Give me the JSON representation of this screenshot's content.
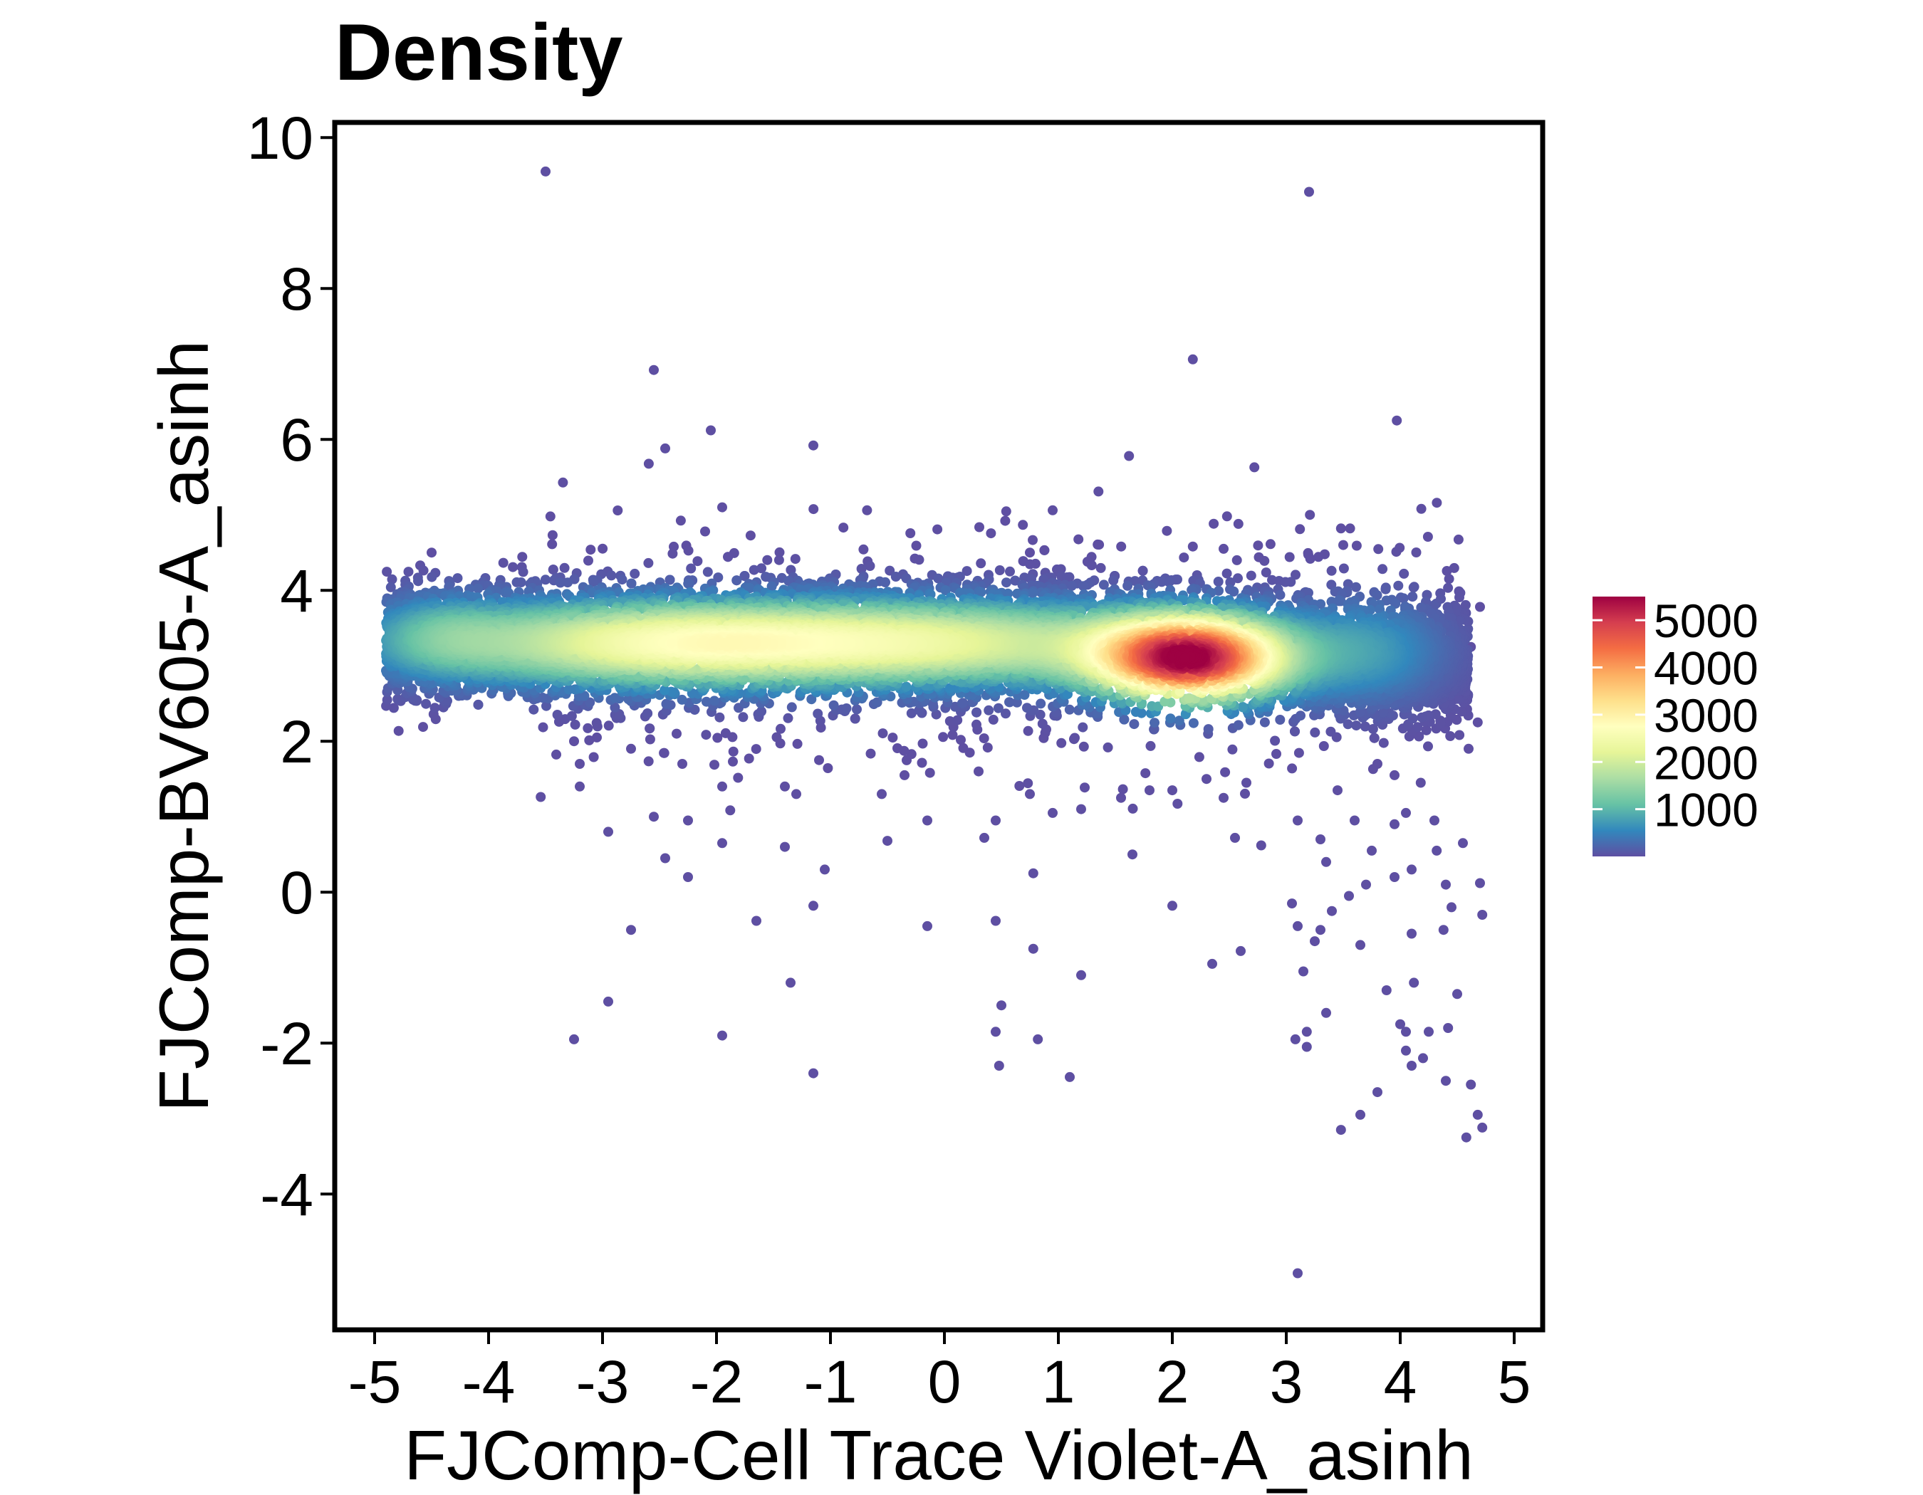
{
  "chart_data": {
    "type": "scatter",
    "title": "Density",
    "xlabel": "FJComp-Cell Trace Violet-A_asinh",
    "ylabel": "FJComp-BV605-A_asinh",
    "xlim": [
      -5.35,
      5.25
    ],
    "ylim": [
      -5.8,
      10.2
    ],
    "x_ticks": [
      -5,
      -4,
      -3,
      -2,
      -1,
      0,
      1,
      2,
      3,
      4,
      5
    ],
    "x_tick_labels": [
      "-5",
      "-4",
      "-3",
      "-2",
      "-1",
      "0",
      "1",
      "2",
      "3",
      "4",
      "5"
    ],
    "y_ticks": [
      -4,
      -2,
      0,
      2,
      4,
      6,
      8,
      10
    ],
    "y_tick_labels": [
      "-4",
      "-2",
      "0",
      "2",
      "4",
      "6",
      "8",
      "10"
    ],
    "grid": false,
    "color_scale": {
      "palette": "Spectral (reversed)",
      "min": 0,
      "max": 5500,
      "ticks": [
        1000,
        2000,
        3000,
        4000,
        5000
      ],
      "tick_labels": [
        "1000",
        "2000",
        "3000",
        "4000",
        "5000"
      ],
      "colors": [
        "#5E4FA2",
        "#3288BD",
        "#66C2A5",
        "#ABDDA4",
        "#E6F598",
        "#FFFFBF",
        "#FEE08B",
        "#FDAE61",
        "#F46D43",
        "#D53E4F",
        "#9E0142"
      ],
      "legend_position": "right"
    },
    "density_clusters": [
      {
        "x": 2.15,
        "y": 3.1,
        "peak_density": 5300,
        "spread_x": 0.55,
        "spread_y": 0.35
      },
      {
        "x": -2.3,
        "y": 3.3,
        "peak_density": 2600,
        "spread_x": 1.4,
        "spread_y": 0.35
      },
      {
        "x": 0.2,
        "y": 3.3,
        "peak_density": 1700,
        "spread_x": 1.2,
        "spread_y": 0.35
      },
      {
        "x": -4.4,
        "y": 3.4,
        "peak_density": 600,
        "spread_x": 0.4,
        "spread_y": 0.35
      },
      {
        "x": 3.7,
        "y": 3.2,
        "peak_density": 700,
        "spread_x": 0.45,
        "spread_y": 0.45
      }
    ],
    "sparse_points": [
      {
        "x": -3.5,
        "y": 9.55
      },
      {
        "x": 3.2,
        "y": 9.28
      },
      {
        "x": -2.55,
        "y": 6.92
      },
      {
        "x": 2.18,
        "y": 7.06
      },
      {
        "x": -2.45,
        "y": 5.88
      },
      {
        "x": -2.05,
        "y": 6.12
      },
      {
        "x": -1.15,
        "y": 5.92
      },
      {
        "x": 3.97,
        "y": 6.25
      },
      {
        "x": 1.62,
        "y": 5.78
      },
      {
        "x": 2.72,
        "y": 5.63
      },
      {
        "x": -1.95,
        "y": 5.1
      },
      {
        "x": 0.95,
        "y": 5.06
      },
      {
        "x": 2.48,
        "y": 4.98
      },
      {
        "x": 2.58,
        "y": 4.88
      },
      {
        "x": 3.12,
        "y": 4.81
      },
      {
        "x": 3.48,
        "y": 4.82
      },
      {
        "x": 3.56,
        "y": 4.82
      },
      {
        "x": -2.1,
        "y": 4.78
      },
      {
        "x": -4.5,
        "y": 4.5
      },
      {
        "x": 0.75,
        "y": 4.5
      },
      {
        "x": 2.18,
        "y": 4.58
      },
      {
        "x": 2.45,
        "y": 4.55
      },
      {
        "x": -3.25,
        "y": 2.0
      },
      {
        "x": -3.2,
        "y": 1.7
      },
      {
        "x": -2.75,
        "y": 1.9
      },
      {
        "x": -2.3,
        "y": 1.7
      },
      {
        "x": -1.95,
        "y": 1.4
      },
      {
        "x": -1.4,
        "y": 1.4
      },
      {
        "x": -3.2,
        "y": 1.4
      },
      {
        "x": -2.95,
        "y": 0.8
      },
      {
        "x": -2.55,
        "y": 1.0
      },
      {
        "x": -2.25,
        "y": 0.95
      },
      {
        "x": -1.3,
        "y": 1.3
      },
      {
        "x": -0.55,
        "y": 1.3
      },
      {
        "x": -0.15,
        "y": 0.95
      },
      {
        "x": 0.45,
        "y": 0.95
      },
      {
        "x": 0.75,
        "y": 1.3
      },
      {
        "x": 0.95,
        "y": 1.05
      },
      {
        "x": 1.2,
        "y": 1.1
      },
      {
        "x": -2.45,
        "y": 0.45
      },
      {
        "x": -2.25,
        "y": 0.2
      },
      {
        "x": -1.95,
        "y": 0.65
      },
      {
        "x": -1.4,
        "y": 0.6
      },
      {
        "x": -1.05,
        "y": 0.3
      },
      {
        "x": -0.5,
        "y": 0.68
      },
      {
        "x": 0.35,
        "y": 0.72
      },
      {
        "x": 0.78,
        "y": 0.25
      },
      {
        "x": 1.65,
        "y": 0.5
      },
      {
        "x": -1.15,
        "y": -0.18
      },
      {
        "x": -1.65,
        "y": -0.38
      },
      {
        "x": -2.75,
        "y": -0.5
      },
      {
        "x": -0.15,
        "y": -0.45
      },
      {
        "x": 0.45,
        "y": -0.38
      },
      {
        "x": 0.78,
        "y": -0.75
      },
      {
        "x": 2.0,
        "y": -0.18
      },
      {
        "x": 2.35,
        "y": -0.95
      },
      {
        "x": 2.6,
        "y": -0.78
      },
      {
        "x": 2.78,
        "y": 0.62
      },
      {
        "x": 2.55,
        "y": 0.72
      },
      {
        "x": -1.35,
        "y": -1.2
      },
      {
        "x": 1.2,
        "y": -1.1
      },
      {
        "x": -2.95,
        "y": -1.45
      },
      {
        "x": 0.5,
        "y": -1.5
      },
      {
        "x": -1.95,
        "y": -1.9
      },
      {
        "x": -3.25,
        "y": -1.95
      },
      {
        "x": 0.45,
        "y": -1.85
      },
      {
        "x": 0.82,
        "y": -1.95
      },
      {
        "x": 0.48,
        "y": -2.3
      },
      {
        "x": -1.15,
        "y": -2.4
      },
      {
        "x": 1.1,
        "y": -2.45
      },
      {
        "x": 3.05,
        "y": -0.15
      },
      {
        "x": 3.1,
        "y": -0.45
      },
      {
        "x": 3.25,
        "y": -0.65
      },
      {
        "x": 3.3,
        "y": -0.5
      },
      {
        "x": 3.4,
        "y": -0.25
      },
      {
        "x": 3.15,
        "y": -1.05
      },
      {
        "x": 3.08,
        "y": -1.95
      },
      {
        "x": 3.18,
        "y": -1.85
      },
      {
        "x": 3.18,
        "y": -2.05
      },
      {
        "x": 3.35,
        "y": -1.6
      },
      {
        "x": 3.48,
        "y": -3.15
      },
      {
        "x": 3.65,
        "y": -2.95
      },
      {
        "x": 3.8,
        "y": -2.65
      },
      {
        "x": 3.88,
        "y": -1.3
      },
      {
        "x": 4.05,
        "y": -2.1
      },
      {
        "x": 4.0,
        "y": -1.75
      },
      {
        "x": 4.05,
        "y": -1.85
      },
      {
        "x": 4.1,
        "y": -2.3
      },
      {
        "x": 4.2,
        "y": -2.2
      },
      {
        "x": 4.12,
        "y": -1.2
      },
      {
        "x": 4.1,
        "y": -0.55
      },
      {
        "x": 4.25,
        "y": -1.85
      },
      {
        "x": 4.42,
        "y": -1.8
      },
      {
        "x": 4.5,
        "y": -1.35
      },
      {
        "x": 4.38,
        "y": -0.5
      },
      {
        "x": 4.45,
        "y": -0.2
      },
      {
        "x": 4.4,
        "y": 0.1
      },
      {
        "x": 4.32,
        "y": 0.55
      },
      {
        "x": 4.58,
        "y": -3.25
      },
      {
        "x": 4.68,
        "y": -2.95
      },
      {
        "x": 4.72,
        "y": -3.12
      },
      {
        "x": 4.62,
        "y": -2.55
      },
      {
        "x": 4.4,
        "y": -2.5
      },
      {
        "x": 4.72,
        "y": -0.3
      },
      {
        "x": 4.7,
        "y": 0.12
      },
      {
        "x": 4.55,
        "y": 0.65
      },
      {
        "x": 4.3,
        "y": 0.95
      },
      {
        "x": 4.1,
        "y": 0.3
      },
      {
        "x": 3.95,
        "y": 0.9
      },
      {
        "x": 3.75,
        "y": 0.55
      },
      {
        "x": 3.6,
        "y": 0.95
      },
      {
        "x": 3.45,
        "y": 1.35
      },
      {
        "x": 3.8,
        "y": 1.7
      },
      {
        "x": 3.95,
        "y": 1.55
      },
      {
        "x": 4.18,
        "y": 1.45
      },
      {
        "x": 4.05,
        "y": 1.05
      },
      {
        "x": 3.3,
        "y": 0.7
      },
      {
        "x": 3.1,
        "y": 0.95
      },
      {
        "x": 3.35,
        "y": 0.4
      },
      {
        "x": 3.7,
        "y": 0.1
      },
      {
        "x": 3.55,
        "y": -0.05
      },
      {
        "x": 3.65,
        "y": -0.7
      },
      {
        "x": 3.95,
        "y": 0.2
      },
      {
        "x": 3.1,
        "y": -5.05
      },
      {
        "x": 4.68,
        "y": 2.25
      },
      {
        "x": 4.7,
        "y": 3.78
      },
      {
        "x": 4.5,
        "y": 3.35
      },
      {
        "x": 4.62,
        "y": 3.25
      },
      {
        "x": 2.3,
        "y": 1.5
      },
      {
        "x": 2.0,
        "y": 1.35
      },
      {
        "x": 1.8,
        "y": 1.35
      },
      {
        "x": 2.65,
        "y": 1.45
      },
      {
        "x": 2.45,
        "y": 1.25
      },
      {
        "x": 1.55,
        "y": 1.25
      },
      {
        "x": -0.35,
        "y": 1.55
      },
      {
        "x": 0.3,
        "y": 1.6
      },
      {
        "x": -3.05,
        "y": 2.05
      },
      {
        "x": -2.35,
        "y": 2.1
      },
      {
        "x": -1.1,
        "y": 1.75
      },
      {
        "x": 4.6,
        "y": 1.9
      }
    ]
  }
}
